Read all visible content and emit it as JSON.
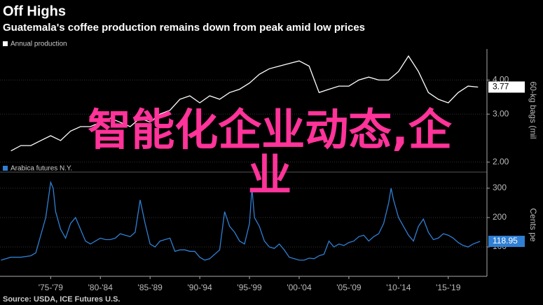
{
  "title": "Off Highs",
  "subtitle": "Guatemala's coffee production remains down from peak amid low prices",
  "source": "Source: USDA, ICE Futures U.S.",
  "overlay_text": [
    "智能化企业动态,企",
    "业"
  ],
  "chart_data": [
    {
      "type": "line",
      "log": true,
      "grid": true,
      "x": [
        1973,
        1974,
        1975,
        1976,
        1977,
        1978,
        1979,
        1980,
        1981,
        1982,
        1983,
        1984,
        1985,
        1986,
        1987,
        1988,
        1989,
        1990,
        1991,
        1992,
        1993,
        1994,
        1995,
        1996,
        1997,
        1998,
        1999,
        2000,
        2001,
        2002,
        2003,
        2004,
        2005,
        2006,
        2007,
        2008,
        2009,
        2010,
        2011,
        2012,
        2013,
        2014,
        2015,
        2016,
        2017,
        2018,
        2019,
        2020
      ],
      "series": [
        {
          "name": "Annual production",
          "color": "#ffffff",
          "end_label": "3.77",
          "values": [
            2.2,
            2.3,
            2.3,
            2.4,
            2.5,
            2.4,
            2.6,
            2.7,
            2.7,
            2.8,
            2.9,
            2.8,
            2.7,
            2.9,
            2.8,
            3.0,
            3.1,
            3.4,
            3.5,
            3.3,
            3.5,
            3.4,
            3.6,
            3.7,
            3.9,
            4.2,
            4.4,
            4.5,
            4.6,
            4.7,
            4.5,
            3.6,
            3.7,
            3.8,
            3.8,
            4.0,
            4.1,
            4.0,
            4.0,
            4.3,
            4.9,
            4.3,
            3.6,
            3.4,
            3.3,
            3.6,
            3.8,
            3.77
          ]
        }
      ],
      "xlim": [
        1971.9,
        2020.4
      ],
      "ylim": [
        1.85,
        5.2
      ],
      "yticks": [
        {
          "value": 2,
          "label": "2.00"
        },
        {
          "value": 3,
          "label": "3.00"
        },
        {
          "value": 4,
          "label": "4.00"
        }
      ],
      "y_label": "60-kg bags (mil"
    },
    {
      "type": "line",
      "log": false,
      "grid": true,
      "x": [
        1972,
        1973,
        1974,
        1975,
        1975.5,
        1976,
        1976.5,
        1977,
        1977.25,
        1977.5,
        1978,
        1978.5,
        1979,
        1979.5,
        1980,
        1980.5,
        1981,
        1981.5,
        1982,
        1982.5,
        1983,
        1983.5,
        1984,
        1984.5,
        1985,
        1985.5,
        1986,
        1986.5,
        1987,
        1987.5,
        1988,
        1988.5,
        1989,
        1989.5,
        1990,
        1990.5,
        1991,
        1991.5,
        1992,
        1992.5,
        1993,
        1993.5,
        1994,
        1994.5,
        1995,
        1995.5,
        1996,
        1996.5,
        1997,
        1997.25,
        1997.5,
        1998,
        1998.5,
        1999,
        1999.5,
        2000,
        2000.5,
        2001,
        2001.5,
        2002,
        2002.5,
        2003,
        2003.5,
        2004,
        2004.5,
        2005,
        2005.5,
        2006,
        2006.5,
        2007,
        2007.5,
        2008,
        2008.5,
        2009,
        2009.5,
        2010,
        2010.5,
        2011,
        2011.25,
        2011.5,
        2012,
        2012.5,
        2013,
        2013.5,
        2014,
        2014.5,
        2015,
        2015.5,
        2016,
        2016.5,
        2017,
        2017.5,
        2018,
        2018.5,
        2019,
        2019.5,
        2020.2
      ],
      "series": [
        {
          "name": "Arabica futures N.Y.",
          "color": "#2f7fd4",
          "end_label": "118.95",
          "values": [
            55,
            65,
            65,
            70,
            80,
            140,
            200,
            320,
            300,
            220,
            160,
            130,
            180,
            200,
            160,
            120,
            110,
            120,
            130,
            125,
            125,
            130,
            145,
            140,
            135,
            150,
            260,
            180,
            110,
            100,
            120,
            125,
            130,
            85,
            90,
            90,
            85,
            85,
            65,
            55,
            60,
            75,
            90,
            220,
            170,
            150,
            120,
            110,
            180,
            300,
            200,
            170,
            120,
            100,
            95,
            110,
            90,
            65,
            60,
            55,
            55,
            62,
            60,
            70,
            75,
            120,
            100,
            110,
            105,
            115,
            120,
            135,
            140,
            120,
            135,
            145,
            180,
            250,
            300,
            260,
            200,
            170,
            140,
            120,
            170,
            195,
            150,
            125,
            130,
            145,
            140,
            130,
            115,
            105,
            100,
            110,
            118.95
          ]
        }
      ],
      "xlim": [
        1971.9,
        2020.4
      ],
      "xticks": [
        {
          "value": 1977,
          "label": "'75-'79"
        },
        {
          "value": 1982,
          "label": "'80-'84"
        },
        {
          "value": 1987,
          "label": "'85-'89"
        },
        {
          "value": 1992,
          "label": "'90-'94"
        },
        {
          "value": 1997,
          "label": "'95-'99"
        },
        {
          "value": 2002,
          "label": "'00-'04"
        },
        {
          "value": 2007,
          "label": "'05-'09"
        },
        {
          "value": 2012,
          "label": "'10-'14"
        },
        {
          "value": 2017,
          "label": "'15-'19"
        }
      ],
      "ylim": [
        0,
        350
      ],
      "yticks": [
        100,
        200,
        300
      ],
      "y_label": "Cents pe"
    }
  ]
}
